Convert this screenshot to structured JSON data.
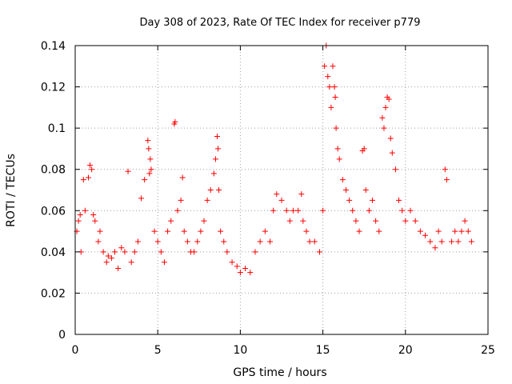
{
  "chart_data": {
    "type": "scatter",
    "title": "Day 308 of 2023, Rate Of TEC Index for receiver p779",
    "xlabel": "GPS time / hours",
    "ylabel": "ROTI / TECUs",
    "xlim": [
      0,
      25
    ],
    "ylim": [
      0,
      0.14
    ],
    "x_ticks": [
      0,
      5,
      10,
      15,
      20,
      25
    ],
    "y_ticks": [
      0,
      0.02,
      0.04,
      0.06,
      0.08,
      0.1,
      0.12,
      0.14
    ],
    "x_tick_labels": [
      "0",
      "5",
      "10",
      "15",
      "20",
      "25"
    ],
    "y_tick_labels": [
      "0",
      "0.02",
      "0.04",
      "0.06",
      "0.08",
      "0.1",
      "0.12",
      "0.14"
    ],
    "grid": true,
    "marker": "plus",
    "color": "#ff0000",
    "series": [
      {
        "x": [
          0.1,
          0.2,
          0.3,
          0.35,
          0.5,
          0.6,
          0.8,
          0.9,
          1.0,
          1.1,
          1.2,
          1.4,
          1.5,
          1.7,
          1.9,
          2.0,
          2.2,
          2.4,
          2.6,
          2.8,
          3.0,
          3.2,
          3.4,
          3.6,
          3.8,
          4.0,
          4.2,
          4.4,
          4.45,
          4.5,
          4.55,
          4.6,
          4.8,
          5.0,
          5.2,
          5.4,
          5.6,
          5.8,
          6.0,
          6.05,
          6.2,
          6.4,
          6.5,
          6.6,
          6.8,
          7.0,
          7.2,
          7.4,
          7.6,
          7.8,
          8.0,
          8.2,
          8.4,
          8.5,
          8.6,
          8.65,
          8.7,
          8.8,
          9.0,
          9.2,
          9.5,
          9.8,
          10.0,
          10.3,
          10.6,
          10.9,
          11.2,
          11.5,
          11.8,
          12.0,
          12.2,
          12.5,
          12.8,
          13.0,
          13.2,
          13.5,
          13.7,
          13.8,
          14.0,
          14.2,
          14.5,
          14.8,
          15.0,
          15.1,
          15.2,
          15.3,
          15.4,
          15.5,
          15.6,
          15.7,
          15.75,
          15.8,
          15.9,
          16.0,
          16.2,
          16.4,
          16.6,
          16.8,
          17.0,
          17.2,
          17.4,
          17.5,
          17.6,
          17.8,
          18.0,
          18.2,
          18.4,
          18.6,
          18.7,
          18.8,
          18.9,
          19.0,
          19.1,
          19.2,
          19.4,
          19.6,
          19.8,
          20.0,
          20.3,
          20.6,
          20.9,
          21.2,
          21.5,
          21.8,
          22.0,
          22.2,
          22.4,
          22.5,
          22.8,
          23.0,
          23.2,
          23.4,
          23.6,
          23.8,
          24.0
        ],
        "y": [
          0.05,
          0.055,
          0.058,
          0.04,
          0.075,
          0.06,
          0.076,
          0.082,
          0.08,
          0.058,
          0.055,
          0.045,
          0.05,
          0.04,
          0.035,
          0.038,
          0.037,
          0.04,
          0.032,
          0.042,
          0.04,
          0.079,
          0.035,
          0.04,
          0.045,
          0.066,
          0.075,
          0.094,
          0.09,
          0.078,
          0.085,
          0.08,
          0.05,
          0.045,
          0.04,
          0.035,
          0.05,
          0.055,
          0.102,
          0.103,
          0.06,
          0.065,
          0.076,
          0.05,
          0.045,
          0.04,
          0.04,
          0.045,
          0.05,
          0.055,
          0.065,
          0.07,
          0.078,
          0.085,
          0.096,
          0.09,
          0.07,
          0.05,
          0.045,
          0.04,
          0.035,
          0.033,
          0.03,
          0.032,
          0.03,
          0.04,
          0.045,
          0.05,
          0.045,
          0.06,
          0.068,
          0.065,
          0.06,
          0.055,
          0.06,
          0.06,
          0.068,
          0.055,
          0.05,
          0.045,
          0.045,
          0.04,
          0.06,
          0.13,
          0.14,
          0.125,
          0.12,
          0.11,
          0.13,
          0.12,
          0.115,
          0.1,
          0.09,
          0.085,
          0.075,
          0.07,
          0.065,
          0.06,
          0.055,
          0.05,
          0.089,
          0.09,
          0.07,
          0.06,
          0.065,
          0.055,
          0.05,
          0.105,
          0.1,
          0.11,
          0.115,
          0.114,
          0.095,
          0.088,
          0.08,
          0.065,
          0.06,
          0.055,
          0.06,
          0.055,
          0.05,
          0.048,
          0.045,
          0.042,
          0.05,
          0.045,
          0.08,
          0.075,
          0.045,
          0.05,
          0.045,
          0.05,
          0.055,
          0.05,
          0.045
        ]
      }
    ]
  }
}
